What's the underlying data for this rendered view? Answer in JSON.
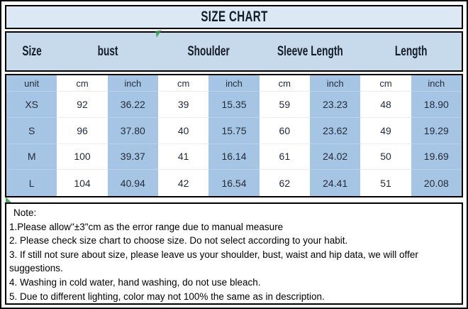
{
  "title": "SIZE CHART",
  "colors": {
    "title_bg": "#dce9f4",
    "header_bg": "#c7daec",
    "cell_blue": "#a6c5e5",
    "cell_white": "#ffffff",
    "border": "#000000",
    "marker_green": "#2f9e44"
  },
  "icons": {
    "cursor_arrow": "green-cursor-arrow",
    "corner_marker": "green-corner-triangle"
  },
  "table": {
    "groups": [
      {
        "label": "Size"
      },
      {
        "label": "bust"
      },
      {
        "label": "Shoulder"
      },
      {
        "label": "Sleeve Length"
      },
      {
        "label": "Length"
      }
    ],
    "unit_row": [
      "unit",
      "cm",
      "inch",
      "cm",
      "inch",
      "cm",
      "inch",
      "cm",
      "inch"
    ],
    "rows": [
      {
        "size": "XS",
        "values": [
          "92",
          "36.22",
          "39",
          "15.35",
          "59",
          "23.23",
          "48",
          "18.90"
        ]
      },
      {
        "size": "S",
        "values": [
          "96",
          "37.80",
          "40",
          "15.75",
          "60",
          "23.62",
          "49",
          "19.29"
        ]
      },
      {
        "size": "M",
        "values": [
          "100",
          "39.37",
          "41",
          "16.14",
          "61",
          "24.02",
          "50",
          "19.69"
        ]
      },
      {
        "size": "L",
        "values": [
          "104",
          "40.94",
          "42",
          "16.54",
          "62",
          "24.41",
          "51",
          "20.08"
        ]
      }
    ]
  },
  "notes": {
    "heading": "Note:",
    "lines": [
      "1.Please allow\"±3\"cm as the error range due to manual measure",
      "2. Please check size chart to choose size. Do not select according to your habit.",
      "3. If still not sure about size, please leave us your shoulder, bust, waist and hip data, we will offer suggestions.",
      "4. Washing in cold water, hand washing, do not use bleach.",
      "5. Due to different lighting, color may not 100% the same as in description."
    ]
  }
}
